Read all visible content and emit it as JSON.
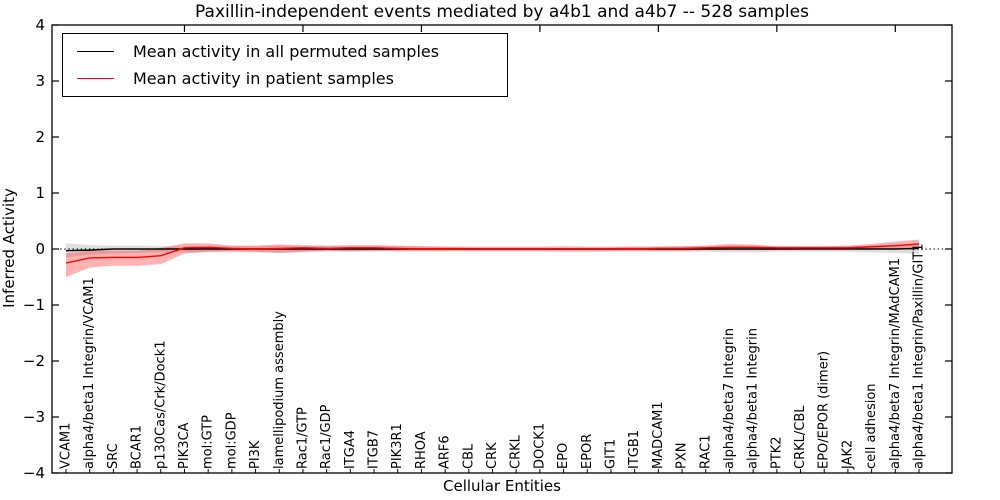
{
  "chart_data": {
    "type": "line",
    "title": "Paxillin-independent events mediated by a4b1 and a4b7 -- 528 samples",
    "xlabel": "Cellular Entities",
    "ylabel": "Inferred Activity",
    "ylim": [
      -4,
      4
    ],
    "yticks": [
      -4,
      -3,
      -2,
      -1,
      0,
      1,
      2,
      3,
      4
    ],
    "x_major_tick_every": 5,
    "zero_line_style": "dotted",
    "legend_position": "upper left",
    "grid": false,
    "categories": [
      "VCAM1",
      "alpha4/beta1 Integrin/VCAM1",
      "SRC",
      "BCAR1",
      "p130Cas/Crk/Dock1",
      "PIK3CA",
      "mol:GTP",
      "mol:GDP",
      "PI3K",
      "lamellipodium assembly",
      "Rac1/GTP",
      "Rac1/GDP",
      "ITGA4",
      "ITGB7",
      "PIK3R1",
      "RHOA",
      "ARF6",
      "CBL",
      "CRK",
      "CRKL",
      "DOCK1",
      "EPO",
      "EPOR",
      "GIT1",
      "ITGB1",
      "MADCAM1",
      "PXN",
      "RAC1",
      "alpha4/beta7 Integrin",
      "alpha4/beta1 Integrin",
      "PTK2",
      "CRKL/CBL",
      "EPO/EPOR (dimer)",
      "JAK2",
      "cell adhesion",
      "alpha4/beta7 Integrin/MAdCAM1",
      "alpha4/beta1 Integrin/Paxillin/GIT1"
    ],
    "series": [
      {
        "name": "Mean activity in all permuted samples",
        "color": "#000000",
        "band_opacity": 0.13,
        "values": [
          -0.03,
          -0.02,
          0,
          0,
          0,
          0,
          0,
          0,
          0,
          0,
          0,
          0,
          0,
          0,
          0,
          0,
          0,
          0,
          0,
          0,
          0,
          0,
          0,
          0,
          0,
          0,
          0,
          0,
          0,
          0,
          0,
          0,
          0,
          0,
          0,
          0,
          0.01
        ],
        "band_upper": [
          0.1,
          0.07,
          0.06,
          0.06,
          0.05,
          0.05,
          0.05,
          0.05,
          0.05,
          0.06,
          0.05,
          0.05,
          0.05,
          0.05,
          0.05,
          0.05,
          0.05,
          0.05,
          0.05,
          0.05,
          0.05,
          0.06,
          0.05,
          0.05,
          0.05,
          0.05,
          0.05,
          0.05,
          0.06,
          0.06,
          0.05,
          0.05,
          0.05,
          0.05,
          0.06,
          0.07,
          0.09
        ],
        "band_lower": [
          -0.15,
          -0.1,
          -0.08,
          -0.07,
          -0.06,
          -0.06,
          -0.06,
          -0.06,
          -0.06,
          -0.07,
          -0.06,
          -0.05,
          -0.05,
          -0.05,
          -0.05,
          -0.05,
          -0.05,
          -0.05,
          -0.05,
          -0.05,
          -0.05,
          -0.06,
          -0.06,
          -0.05,
          -0.05,
          -0.05,
          -0.05,
          -0.05,
          -0.06,
          -0.06,
          -0.05,
          -0.05,
          -0.05,
          -0.05,
          -0.06,
          -0.07,
          -0.08
        ]
      },
      {
        "name": "Mean activity in patient samples",
        "color": "#ff0000",
        "band_opacity": 0.3,
        "values": [
          -0.25,
          -0.16,
          -0.15,
          -0.15,
          -0.12,
          0.02,
          0.03,
          0.01,
          0.0,
          0.01,
          0.02,
          0.01,
          0.02,
          0.02,
          0.01,
          0.0,
          0.0,
          0.0,
          0.0,
          0.0,
          0.0,
          0.0,
          0.0,
          0.0,
          0.0,
          0.01,
          0.01,
          0.02,
          0.03,
          0.03,
          0.02,
          0.02,
          0.02,
          0.02,
          0.04,
          0.06,
          0.09
        ],
        "band_upper": [
          -0.08,
          -0.03,
          -0.03,
          -0.03,
          0.02,
          0.1,
          0.1,
          0.06,
          0.06,
          0.08,
          0.07,
          0.06,
          0.07,
          0.07,
          0.06,
          0.05,
          0.04,
          0.03,
          0.03,
          0.03,
          0.03,
          0.03,
          0.03,
          0.03,
          0.04,
          0.04,
          0.05,
          0.06,
          0.09,
          0.08,
          0.05,
          0.05,
          0.05,
          0.06,
          0.09,
          0.13,
          0.17
        ],
        "band_lower": [
          -0.5,
          -0.33,
          -0.3,
          -0.3,
          -0.27,
          -0.08,
          -0.05,
          -0.04,
          -0.05,
          -0.07,
          -0.05,
          -0.03,
          -0.04,
          -0.03,
          -0.03,
          -0.03,
          -0.03,
          -0.03,
          -0.03,
          -0.03,
          -0.03,
          -0.03,
          -0.03,
          -0.03,
          -0.03,
          -0.03,
          -0.03,
          -0.02,
          -0.02,
          -0.02,
          -0.02,
          -0.01,
          -0.01,
          -0.01,
          0.0,
          0.0,
          0.01
        ]
      }
    ]
  }
}
